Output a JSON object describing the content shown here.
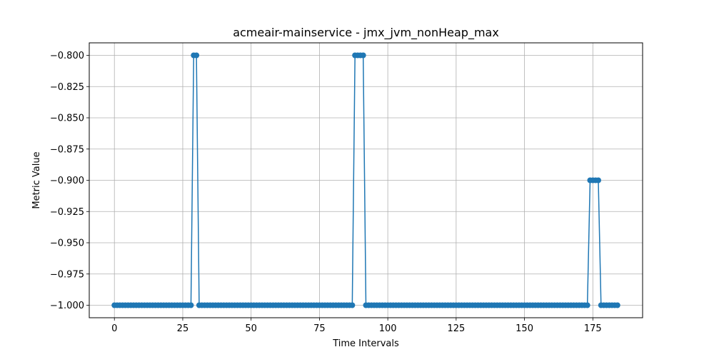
{
  "chart_data": {
    "type": "line",
    "title": "acmeair-mainservice - jmx_jvm_nonHeap_max",
    "xlabel": "Time Intervals",
    "ylabel": "Metric Value",
    "xlim": [
      -9.2,
      193.2
    ],
    "ylim": [
      -1.01,
      -0.79
    ],
    "xticks": [
      0,
      25,
      50,
      75,
      100,
      125,
      150,
      175
    ],
    "xtick_labels": [
      "0",
      "25",
      "50",
      "75",
      "100",
      "125",
      "150",
      "175"
    ],
    "yticks": [
      -1.0,
      -0.975,
      -0.95,
      -0.925,
      -0.9,
      -0.875,
      -0.85,
      -0.825,
      -0.8
    ],
    "ytick_labels": [
      "−1.000",
      "−0.975",
      "−0.950",
      "−0.925",
      "−0.900",
      "−0.875",
      "−0.850",
      "−0.825",
      "−0.800"
    ],
    "grid": true,
    "marker": "circle",
    "series": [
      {
        "color": "#1f77b4",
        "x_start": 0,
        "x_step": 1,
        "values": [
          -1.0,
          -1.0,
          -1.0,
          -1.0,
          -1.0,
          -1.0,
          -1.0,
          -1.0,
          -1.0,
          -1.0,
          -1.0,
          -1.0,
          -1.0,
          -1.0,
          -1.0,
          -1.0,
          -1.0,
          -1.0,
          -1.0,
          -1.0,
          -1.0,
          -1.0,
          -1.0,
          -1.0,
          -1.0,
          -1.0,
          -1.0,
          -1.0,
          -1.0,
          -0.8,
          -0.8,
          -1.0,
          -1.0,
          -1.0,
          -1.0,
          -1.0,
          -1.0,
          -1.0,
          -1.0,
          -1.0,
          -1.0,
          -1.0,
          -1.0,
          -1.0,
          -1.0,
          -1.0,
          -1.0,
          -1.0,
          -1.0,
          -1.0,
          -1.0,
          -1.0,
          -1.0,
          -1.0,
          -1.0,
          -1.0,
          -1.0,
          -1.0,
          -1.0,
          -1.0,
          -1.0,
          -1.0,
          -1.0,
          -1.0,
          -1.0,
          -1.0,
          -1.0,
          -1.0,
          -1.0,
          -1.0,
          -1.0,
          -1.0,
          -1.0,
          -1.0,
          -1.0,
          -1.0,
          -1.0,
          -1.0,
          -1.0,
          -1.0,
          -1.0,
          -1.0,
          -1.0,
          -1.0,
          -1.0,
          -1.0,
          -1.0,
          -1.0,
          -0.8,
          -0.8,
          -0.8,
          -0.8,
          -1.0,
          -1.0,
          -1.0,
          -1.0,
          -1.0,
          -1.0,
          -1.0,
          -1.0,
          -1.0,
          -1.0,
          -1.0,
          -1.0,
          -1.0,
          -1.0,
          -1.0,
          -1.0,
          -1.0,
          -1.0,
          -1.0,
          -1.0,
          -1.0,
          -1.0,
          -1.0,
          -1.0,
          -1.0,
          -1.0,
          -1.0,
          -1.0,
          -1.0,
          -1.0,
          -1.0,
          -1.0,
          -1.0,
          -1.0,
          -1.0,
          -1.0,
          -1.0,
          -1.0,
          -1.0,
          -1.0,
          -1.0,
          -1.0,
          -1.0,
          -1.0,
          -1.0,
          -1.0,
          -1.0,
          -1.0,
          -1.0,
          -1.0,
          -1.0,
          -1.0,
          -1.0,
          -1.0,
          -1.0,
          -1.0,
          -1.0,
          -1.0,
          -1.0,
          -1.0,
          -1.0,
          -1.0,
          -1.0,
          -1.0,
          -1.0,
          -1.0,
          -1.0,
          -1.0,
          -1.0,
          -1.0,
          -1.0,
          -1.0,
          -1.0,
          -1.0,
          -1.0,
          -1.0,
          -1.0,
          -1.0,
          -1.0,
          -1.0,
          -1.0,
          -1.0,
          -0.9,
          -0.9,
          -0.9,
          -0.9,
          -1.0,
          -1.0,
          -1.0,
          -1.0,
          -1.0,
          -1.0,
          -1.0
        ]
      }
    ]
  },
  "colors": {
    "line": "#1f77b4",
    "grid": "#b0b0b0",
    "axes": "#000000",
    "background": "#ffffff"
  }
}
